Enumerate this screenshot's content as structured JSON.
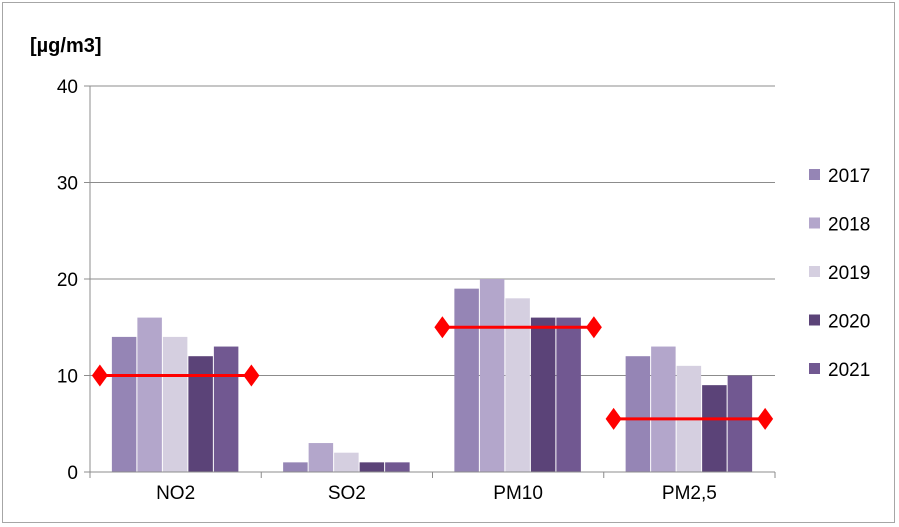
{
  "chart_data": {
    "type": "bar",
    "title": "",
    "ylabel": "[µg/m3]",
    "xlabel": "",
    "ylim": [
      0,
      40
    ],
    "yticks": [
      0,
      10,
      20,
      30,
      40
    ],
    "grid": true,
    "legend_position": "right",
    "categories": [
      "NO2",
      "SO2",
      "PM10",
      "PM2,5"
    ],
    "series": [
      {
        "name": "2017",
        "color": "#9585b5",
        "values": [
          14,
          1,
          19,
          12
        ]
      },
      {
        "name": "2018",
        "color": "#b3a6cb",
        "values": [
          16,
          3,
          20,
          13
        ]
      },
      {
        "name": "2019",
        "color": "#d5cfe0",
        "values": [
          14,
          2,
          18,
          11
        ]
      },
      {
        "name": "2020",
        "color": "#5b4378",
        "values": [
          12,
          1,
          16,
          9
        ]
      },
      {
        "name": "2021",
        "color": "#715891",
        "values": [
          13,
          1,
          16,
          10
        ]
      }
    ],
    "limit_lines": {
      "color": "#ff0000",
      "values": [
        10,
        null,
        15,
        5.5
      ]
    }
  }
}
